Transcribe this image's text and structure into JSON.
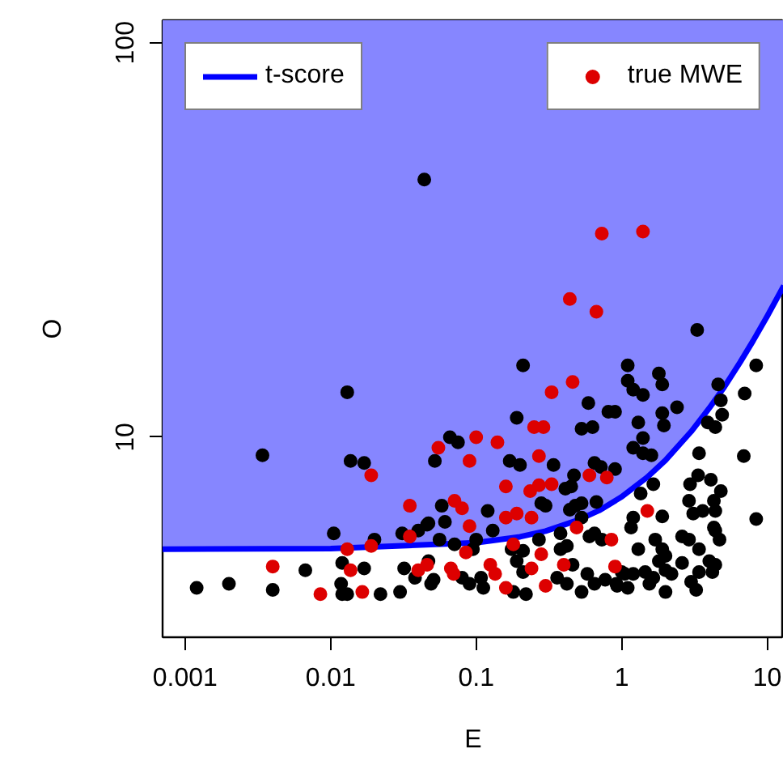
{
  "chart_data": {
    "type": "scatter",
    "xlabel": "E",
    "ylabel": "O",
    "log": "xy",
    "xlim": [
      0.0007,
      13
    ],
    "ylim": [
      3.11,
      114
    ],
    "xticks": [
      0.001,
      0.01,
      0.1,
      1,
      10
    ],
    "yticks": [
      10,
      100
    ],
    "grid": false,
    "legend": "top",
    "marker": "circle",
    "series": [
      {
        "name": "t-score",
        "type": "line",
        "marker": "none",
        "color": "#0000ff",
        "line_style": "solid",
        "x": [
          0.0007,
          0.01,
          0.1,
          0.2,
          0.3,
          0.5,
          0.7,
          1,
          1.5,
          2,
          3,
          4,
          5,
          6.5,
          8,
          10,
          13
        ],
        "values": [
          5.2,
          5.22,
          5.4,
          5.59,
          5.78,
          6.16,
          6.52,
          7.06,
          7.92,
          8.74,
          10.33,
          11.85,
          13.3,
          15.47,
          17.55,
          20.27,
          24.2
        ],
        "lower": [
          5.2,
          5.22,
          5.4,
          5.59,
          5.78,
          6.16,
          6.52,
          7.06,
          7.92,
          8.74,
          10.33,
          11.85,
          13.3,
          15.47,
          17.55,
          20.27,
          24.2
        ],
        "upper": [
          114,
          114,
          114,
          114,
          114,
          114,
          114,
          114,
          114,
          114,
          114,
          114,
          114,
          114,
          114,
          114,
          114
        ]
      },
      {
        "color": "#000000",
        "x": [
          0.013,
          0.0034,
          0.0137,
          0.017,
          0.052,
          0.0105,
          0.031,
          0.04,
          0.046,
          0.02,
          0.0067,
          0.012,
          0.017,
          0.0012,
          0.002,
          0.004,
          0.0118,
          0.012,
          0.013,
          0.022,
          0.032,
          0.03,
          0.038,
          0.049,
          0.047,
          0.058,
          0.21,
          0.59,
          0.81,
          0.19,
          0.53,
          0.63,
          0.066,
          0.075,
          0.17,
          0.2,
          0.34,
          0.65,
          0.72,
          0.47,
          0.45,
          0.41,
          0.28,
          0.3,
          0.12,
          0.48,
          0.53,
          0.67,
          0.047,
          0.061,
          0.13,
          0.1,
          0.056,
          0.071,
          0.051,
          0.08,
          0.09,
          0.108,
          0.112,
          0.19,
          0.21,
          0.22,
          0.18,
          0.36,
          0.42,
          0.46,
          0.58,
          0.65,
          0.77,
          0.92,
          1.05,
          0.53,
          0.44,
          0.53,
          0.38,
          0.42,
          0.27,
          0.095,
          0.175,
          0.21,
          0.38,
          0.6,
          0.65,
          0.73,
          3.3,
          1.1,
          1.8,
          1.9,
          1.1,
          1.2,
          1.4,
          8.4,
          4.6,
          4.8,
          4.9,
          7.0,
          2.4,
          1.9,
          1.95,
          1.3,
          3.9,
          4.4,
          0.9,
          1.4,
          1.2,
          1.4,
          1.6,
          3.4,
          6.9,
          0.9,
          1.65,
          1.35,
          3.35,
          2.95,
          4.1,
          4.8,
          8.4,
          1.9,
          1.2,
          1.16,
          2.9,
          3.1,
          3.6,
          4.3,
          4.4,
          4.3,
          4.4,
          4.7,
          2.6,
          2.9,
          3.4,
          4.0,
          1.3,
          1.7,
          1.9,
          1.8,
          2.0,
          2.6,
          1.0,
          1.2,
          1.45,
          1.65,
          2.0,
          2.2,
          3.4,
          4.2,
          4.4,
          0.93,
          1.1,
          1.55,
          2.0,
          3.0,
          3.25,
          0.044
        ],
        "values": [
          13,
          9,
          8.7,
          8.6,
          8.7,
          5.7,
          5.7,
          5.8,
          6.0,
          5.5,
          4.6,
          4.8,
          4.65,
          4.15,
          4.25,
          4.1,
          4.25,
          4.0,
          4.0,
          4.0,
          4.65,
          4.05,
          4.4,
          4.25,
          4.85,
          6.7,
          15.2,
          12.2,
          11.6,
          11.2,
          10.5,
          10.6,
          10,
          9.7,
          8.7,
          8.5,
          8.5,
          8.6,
          8.4,
          8.0,
          7.5,
          7.4,
          6.8,
          6.7,
          6.5,
          6.7,
          6.8,
          6.85,
          6.05,
          6.1,
          5.8,
          5.5,
          5.5,
          5.35,
          4.35,
          4.4,
          4.25,
          4.4,
          4.15,
          4.85,
          4.55,
          4.0,
          4.05,
          4.4,
          4.25,
          4.75,
          4.5,
          4.25,
          4.35,
          4.25,
          4.5,
          4.05,
          6.55,
          6.25,
          5.2,
          5.3,
          5.5,
          5.2,
          5.2,
          5.15,
          5.7,
          5.6,
          5.7,
          5.5,
          18.7,
          15.2,
          14.5,
          13.6,
          13.9,
          13.2,
          12.8,
          15.2,
          13.6,
          12.4,
          11.4,
          12.9,
          11.9,
          11.5,
          10.7,
          10.9,
          10.9,
          10.6,
          11.6,
          9.95,
          9.4,
          9.1,
          9.0,
          9.1,
          8.95,
          8.3,
          7.6,
          7.2,
          8.0,
          7.6,
          7.8,
          7.3,
          6.2,
          6.3,
          6.25,
          5.9,
          6.9,
          6.4,
          6.5,
          6.9,
          6.5,
          5.9,
          5.8,
          5.5,
          5.6,
          5.5,
          5.2,
          4.85,
          5.2,
          5.5,
          5.2,
          4.85,
          5.0,
          4.8,
          4.55,
          4.5,
          4.55,
          4.4,
          4.6,
          4.5,
          4.55,
          4.55,
          4.75,
          4.2,
          4.15,
          4.25,
          4.05,
          4.3,
          4.1,
          45
        ]
      },
      {
        "name": "true MWE",
        "color": "#dd0000",
        "x": [
          0.019,
          0.055,
          0.035,
          0.035,
          0.019,
          0.013,
          0.004,
          0.0137,
          0.0085,
          0.0165,
          0.04,
          0.046,
          0.46,
          0.33,
          0.25,
          0.29,
          0.1,
          0.14,
          0.09,
          0.27,
          0.6,
          0.79,
          0.16,
          0.235,
          0.27,
          0.33,
          0.071,
          0.08,
          0.16,
          0.19,
          0.24,
          0.09,
          0.18,
          0.49,
          0.85,
          0.28,
          0.085,
          0.067,
          0.07,
          0.125,
          0.135,
          0.24,
          0.4,
          0.9,
          0.16,
          0.3,
          1.5,
          0.73,
          1.4,
          0.44,
          0.67
        ],
        "values": [
          8.0,
          9.4,
          6.7,
          5.6,
          5.3,
          5.2,
          4.7,
          4.6,
          4.0,
          4.05,
          4.6,
          4.75,
          13.8,
          13.0,
          10.6,
          10.6,
          10,
          9.7,
          8.7,
          8.95,
          8.0,
          7.9,
          7.5,
          7.3,
          7.55,
          7.6,
          6.9,
          6.6,
          6.25,
          6.4,
          6.25,
          5.95,
          5.35,
          5.9,
          5.5,
          5.05,
          5.1,
          4.65,
          4.5,
          4.75,
          4.5,
          4.65,
          4.75,
          4.7,
          4.15,
          4.2,
          6.5,
          32.8,
          33.2,
          22.4,
          20.8
        ]
      }
    ]
  }
}
